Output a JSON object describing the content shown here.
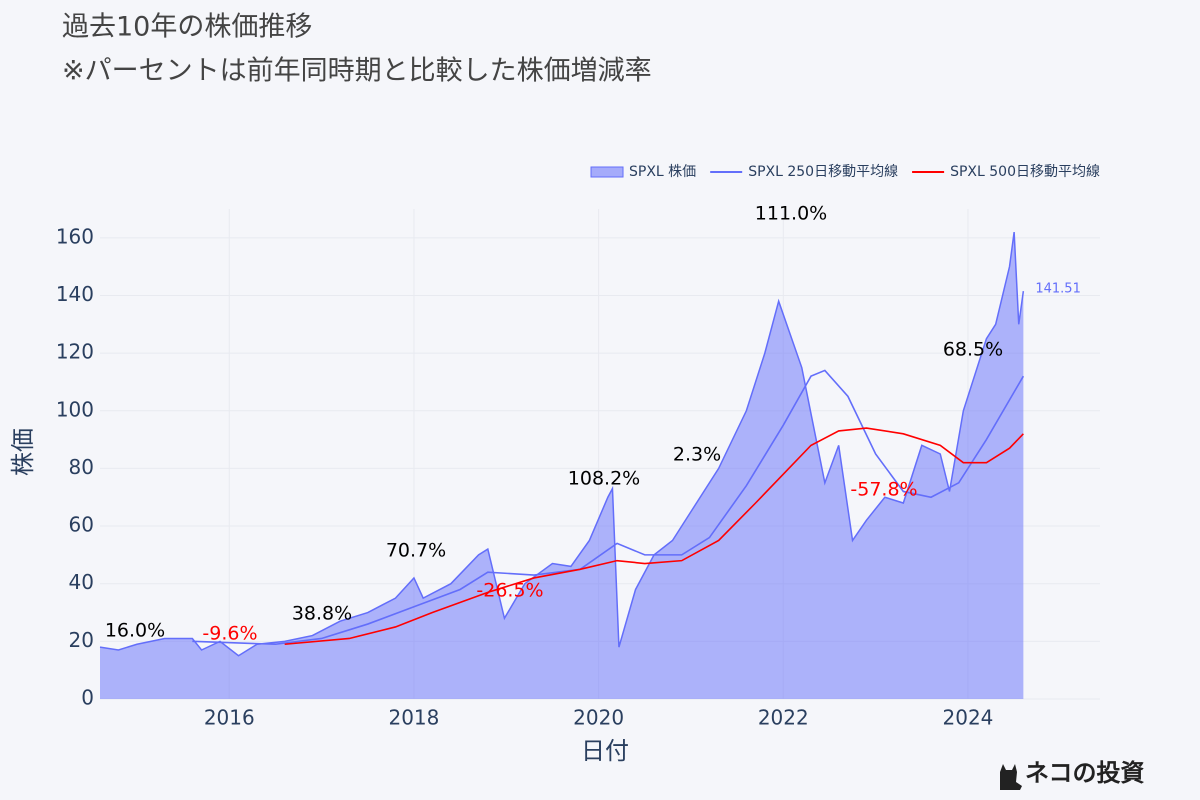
{
  "chart_data": {
    "type": "area-line",
    "title": "過去10年の株価推移",
    "subtitle": "※パーセントは前年同時期と比較した株価増減率",
    "x_label": "日付",
    "y_label": "株価",
    "xlim": [
      2014.6,
      2025.43
    ],
    "xticks": [
      2016,
      2018,
      2020,
      2022,
      2024
    ],
    "ylim": [
      0,
      170
    ],
    "yticks": [
      0,
      20,
      40,
      60,
      80,
      100,
      120,
      140,
      160
    ],
    "grid": true,
    "legend": "top-right",
    "series": [
      {
        "name": "SPXL 株価",
        "color": "#636efa",
        "fill": true,
        "x": [
          2014.6,
          2014.8,
          2015.0,
          2015.3,
          2015.6,
          2015.7,
          2015.9,
          2016.1,
          2016.3,
          2016.6,
          2016.9,
          2017.2,
          2017.5,
          2017.8,
          2018.0,
          2018.1,
          2018.4,
          2018.7,
          2018.8,
          2018.98,
          2019.2,
          2019.5,
          2019.7,
          2019.9,
          2020.1,
          2020.15,
          2020.22,
          2020.4,
          2020.6,
          2020.8,
          2021.0,
          2021.3,
          2021.6,
          2021.8,
          2021.95,
          2022.2,
          2022.45,
          2022.6,
          2022.75,
          2022.9,
          2023.1,
          2023.3,
          2023.5,
          2023.7,
          2023.8,
          2023.95,
          2024.2,
          2024.3,
          2024.45,
          2024.5,
          2024.55,
          2024.6
        ],
        "values": [
          18,
          17,
          19,
          21,
          21,
          17,
          20,
          15,
          19,
          20,
          22,
          27,
          30,
          35,
          42,
          35,
          40,
          50,
          52,
          28,
          40,
          47,
          46,
          55,
          70,
          73,
          18,
          38,
          50,
          55,
          65,
          80,
          100,
          120,
          138,
          115,
          75,
          88,
          55,
          62,
          70,
          68,
          88,
          85,
          72,
          100,
          125,
          130,
          150,
          162,
          130,
          141.51
        ]
      },
      {
        "name": "SPXL 250日移動平均線",
        "color": "#636efa",
        "fill": false,
        "x": [
          2015.6,
          2016.5,
          2017.0,
          2017.5,
          2018.0,
          2018.5,
          2018.8,
          2019.3,
          2019.8,
          2020.2,
          2020.5,
          2020.9,
          2021.2,
          2021.6,
          2022.0,
          2022.3,
          2022.45,
          2022.7,
          2023.0,
          2023.3,
          2023.6,
          2023.9,
          2024.2,
          2024.6
        ],
        "values": [
          20,
          19,
          21,
          26,
          32,
          38,
          44,
          43,
          45,
          54,
          50,
          50,
          56,
          74,
          95,
          112,
          114,
          105,
          85,
          72,
          70,
          75,
          90,
          112
        ]
      },
      {
        "name": "SPXL 500日移動平均線",
        "color": "#ff0000",
        "fill": false,
        "x": [
          2016.6,
          2017.3,
          2017.8,
          2018.2,
          2018.8,
          2019.3,
          2019.8,
          2020.2,
          2020.5,
          2020.9,
          2021.3,
          2021.7,
          2022.0,
          2022.3,
          2022.6,
          2022.9,
          2023.3,
          2023.7,
          2023.95,
          2024.2,
          2024.45,
          2024.6
        ],
        "values": [
          19,
          21,
          25,
          30,
          37,
          42,
          45,
          48,
          47,
          48,
          55,
          68,
          78,
          88,
          93,
          94,
          92,
          88,
          82,
          82,
          87,
          92
        ]
      }
    ],
    "annotations": [
      {
        "text": "16.0%",
        "color": "#000000"
      },
      {
        "text": "-9.6%",
        "color": "#ff0000"
      },
      {
        "text": "38.8%",
        "color": "#000000"
      },
      {
        "text": "70.7%",
        "color": "#000000"
      },
      {
        "text": "-26.5%",
        "color": "#ff0000"
      },
      {
        "text": "108.2%",
        "color": "#000000"
      },
      {
        "text": "2.3%",
        "color": "#000000"
      },
      {
        "text": "111.0%",
        "color": "#000000"
      },
      {
        "text": "-57.8%",
        "color": "#ff0000"
      },
      {
        "text": "68.5%",
        "color": "#000000"
      }
    ],
    "watermark": "ネコの投資"
  }
}
